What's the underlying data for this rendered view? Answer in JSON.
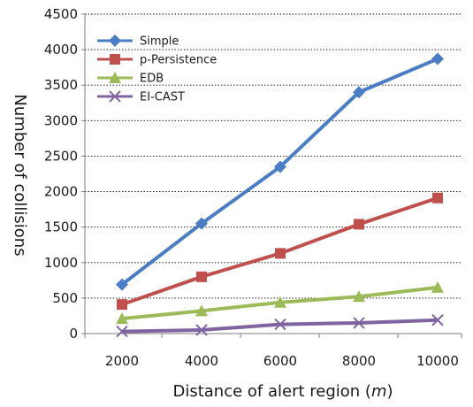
{
  "chart_data": {
    "type": "line",
    "title": "",
    "xlabel": "Distance of alert region (m)",
    "xlabel_prefix": "Distance of alert region (",
    "xlabel_unit": "m",
    "xlabel_suffix": ")",
    "ylabel": "Number of collisions",
    "x": [
      2000,
      4000,
      6000,
      8000,
      10000
    ],
    "x_tick_labels": [
      "2000",
      "4000",
      "6000",
      "8000",
      "10000"
    ],
    "ylim": [
      0,
      4500
    ],
    "y_ticks": [
      0,
      500,
      1000,
      1500,
      2000,
      2500,
      3000,
      3500,
      4000,
      4500
    ],
    "y_tick_labels": [
      "0",
      "500",
      "1000",
      "1500",
      "2000",
      "2500",
      "3000",
      "3500",
      "4000",
      "4500"
    ],
    "grid": "horizontal dotted",
    "legend_position": "top-left",
    "series": [
      {
        "name": "Simple",
        "values": [
          690,
          1550,
          2350,
          3400,
          3870
        ],
        "color": "#4a7dc4",
        "marker": "diamond"
      },
      {
        "name": "p-Persistence",
        "values": [
          410,
          800,
          1130,
          1540,
          1910
        ],
        "color": "#c0504d",
        "marker": "square"
      },
      {
        "name": "EDB",
        "values": [
          210,
          320,
          440,
          520,
          650
        ],
        "color": "#9bbb59",
        "marker": "triangle"
      },
      {
        "name": "EI-CAST",
        "values": [
          30,
          50,
          130,
          150,
          190
        ],
        "color": "#8064a2",
        "marker": "x"
      }
    ]
  }
}
